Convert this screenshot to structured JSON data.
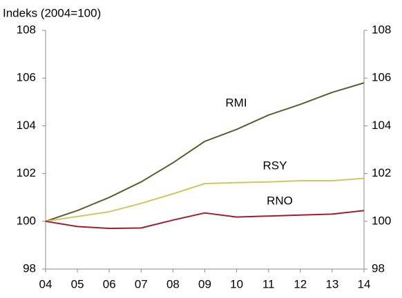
{
  "chart_data": {
    "type": "line",
    "title": "Indeks (2004=100)",
    "categories": [
      "04",
      "05",
      "06",
      "07",
      "08",
      "09",
      "10",
      "11",
      "12",
      "13",
      "14"
    ],
    "series": [
      {
        "name": "RMI",
        "color": "#5f5a2e",
        "values": [
          100,
          100.45,
          101.0,
          101.65,
          102.45,
          103.35,
          103.85,
          104.45,
          104.9,
          105.4,
          105.8
        ]
      },
      {
        "name": "RSY",
        "color": "#cbc860",
        "values": [
          100,
          100.2,
          100.4,
          100.75,
          101.15,
          101.58,
          101.62,
          101.65,
          101.7,
          101.7,
          101.8
        ]
      },
      {
        "name": "RNO",
        "color": "#a01c2c",
        "values": [
          100,
          99.78,
          99.7,
          99.72,
          100.05,
          100.35,
          100.18,
          100.22,
          100.26,
          100.3,
          100.45
        ]
      }
    ],
    "ylim": [
      98,
      108
    ],
    "yticks": [
      98,
      100,
      102,
      104,
      106,
      108
    ],
    "y2lim": [
      98,
      108
    ],
    "y2ticks": [
      98,
      100,
      102,
      104,
      106,
      108
    ]
  }
}
